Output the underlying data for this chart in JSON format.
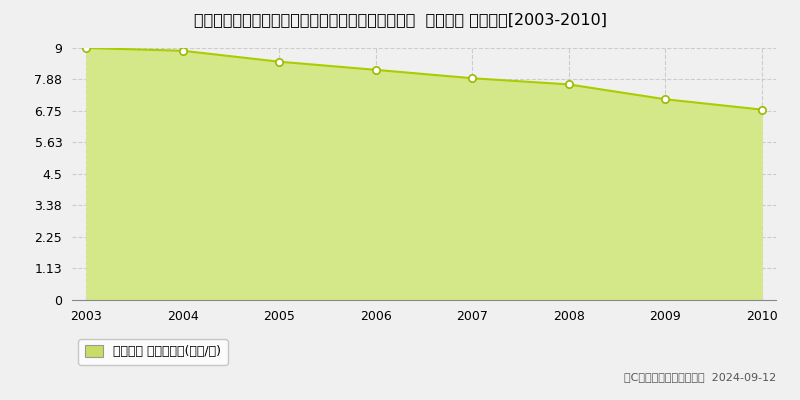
{
  "title": "青森県三戸郡三戸町大字川守田字横道３４番１０外  地価公示 地価推移[2003-2010]",
  "years": [
    2003,
    2004,
    2005,
    2006,
    2007,
    2008,
    2009,
    2010
  ],
  "values": [
    9.0,
    8.9,
    8.51,
    8.22,
    7.92,
    7.7,
    7.17,
    6.8
  ],
  "ylim": [
    0,
    9.0
  ],
  "yticks": [
    0,
    1.13,
    2.25,
    3.38,
    4.5,
    5.63,
    6.75,
    7.88,
    9
  ],
  "ytick_labels": [
    "0",
    "1.13",
    "2.25",
    "3.38",
    "4.5",
    "5.63",
    "6.75",
    "7.88",
    "9"
  ],
  "line_color": "#aacc00",
  "fill_color": "#d4e88a",
  "marker_facecolor": "#ffffff",
  "marker_edge_color": "#99bb00",
  "grid_color": "#cccccc",
  "background_color": "#f0f0f0",
  "plot_bg_color": "#f0f0f0",
  "legend_label": "地価公示 平均坪単価(万円/坪)",
  "legend_square_color": "#c8dd66",
  "copyright_text": "（C）土地価格ドットコム  2024-09-12",
  "title_fontsize": 11.5,
  "axis_fontsize": 9,
  "legend_fontsize": 9
}
